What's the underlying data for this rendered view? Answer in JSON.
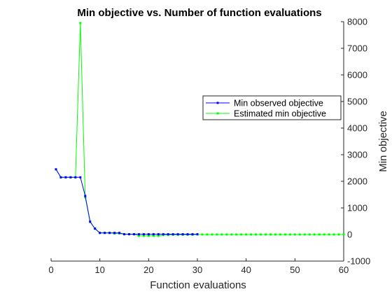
{
  "chart_data": {
    "type": "line",
    "title": "Min objective vs. Number of function evaluations",
    "xlabel": "Function evaluations",
    "ylabel": "Min objective",
    "xlim": [
      0,
      60
    ],
    "ylim": [
      -1000,
      8000
    ],
    "xticks": [
      0,
      10,
      20,
      30,
      40,
      50,
      60
    ],
    "yticks": [
      -1000,
      0,
      1000,
      2000,
      3000,
      4000,
      5000,
      6000,
      7000,
      8000
    ],
    "y_axis_side": "right",
    "grid": false,
    "legend": {
      "placement": "right-middle"
    },
    "series": [
      {
        "name": "Min observed objective",
        "color": "#0000ff",
        "marker": "square",
        "x": [
          1,
          2,
          3,
          4,
          5,
          6,
          7,
          8,
          9,
          10,
          11,
          12,
          13,
          14,
          15,
          16,
          17,
          18,
          19,
          20,
          21,
          22,
          23,
          24,
          25,
          26,
          27,
          28,
          29,
          30
        ],
        "y": [
          2450,
          2150,
          2150,
          2150,
          2150,
          2150,
          1450,
          480,
          220,
          60,
          60,
          60,
          60,
          60,
          10,
          10,
          10,
          10,
          10,
          10,
          10,
          10,
          10,
          10,
          10,
          10,
          10,
          10,
          10,
          10
        ]
      },
      {
        "name": "Estimated min objective",
        "color": "#00ff00",
        "marker": "square",
        "x": [
          1,
          2,
          3,
          4,
          5,
          6,
          7,
          8,
          9,
          10,
          11,
          12,
          13,
          14,
          15,
          16,
          17,
          18,
          19,
          20,
          21,
          22,
          23,
          24,
          25,
          26,
          27,
          28,
          29,
          30,
          31,
          32,
          33,
          34,
          35,
          36,
          37,
          38,
          39,
          40,
          41,
          42,
          43,
          44,
          45,
          46,
          47,
          48,
          49,
          50,
          51,
          52,
          53,
          54,
          55,
          56,
          57,
          58,
          59,
          60
        ],
        "y": [
          2450,
          2150,
          2150,
          2150,
          2150,
          7950,
          1400,
          480,
          220,
          60,
          60,
          60,
          40,
          40,
          10,
          10,
          10,
          -50,
          -50,
          -50,
          -50,
          -50,
          -20,
          -20,
          -10,
          -10,
          -10,
          -10,
          -10,
          0,
          0,
          0,
          0,
          0,
          0,
          0,
          0,
          0,
          0,
          0,
          0,
          0,
          0,
          0,
          0,
          0,
          0,
          0,
          0,
          0,
          0,
          0,
          0,
          0,
          0,
          0,
          0,
          0,
          0,
          0
        ]
      }
    ]
  }
}
